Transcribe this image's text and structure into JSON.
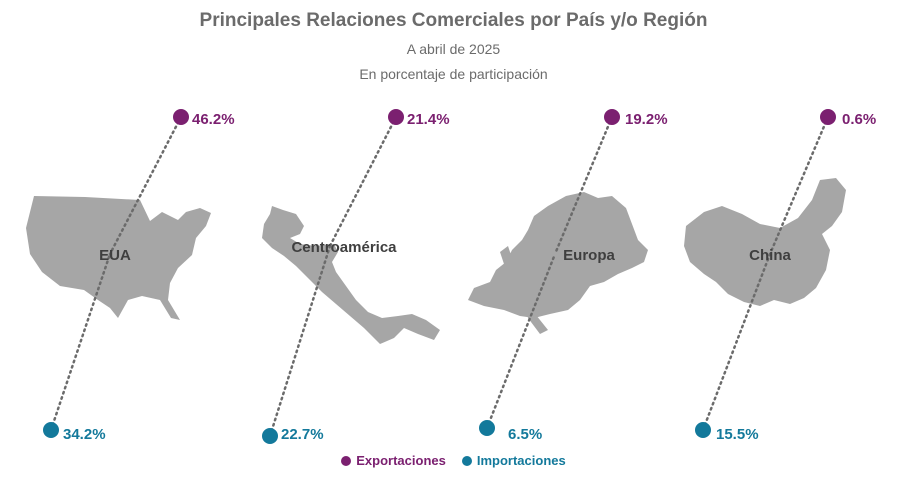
{
  "header": {
    "title": "Principales Relaciones Comerciales por País y/o Región",
    "subtitle": "A abril de 2025",
    "note": "En porcentaje de participación"
  },
  "colors": {
    "exports": "#7b2070",
    "imports": "#13799b",
    "map": "#a6a6a6",
    "label": "#3f3f3f"
  },
  "chart_data": {
    "type": "scatter",
    "unit": "%",
    "categories": [
      "EUA",
      "Centroamérica",
      "Europa",
      "China"
    ],
    "series": [
      {
        "name": "Exportaciones",
        "values": [
          46.2,
          21.4,
          19.2,
          0.6
        ]
      },
      {
        "name": "Importaciones",
        "values": [
          34.2,
          22.7,
          6.5,
          15.5
        ]
      }
    ],
    "value_labels": {
      "exports": [
        "46.2%",
        "21.4%",
        "19.2%",
        "0.6%"
      ],
      "imports": [
        "34.2%",
        "22.7%",
        "6.5%",
        "15.5%"
      ]
    },
    "legend_position": "bottom-center"
  },
  "legend": {
    "exports_label": "Exportaciones",
    "imports_label": "Importaciones"
  }
}
